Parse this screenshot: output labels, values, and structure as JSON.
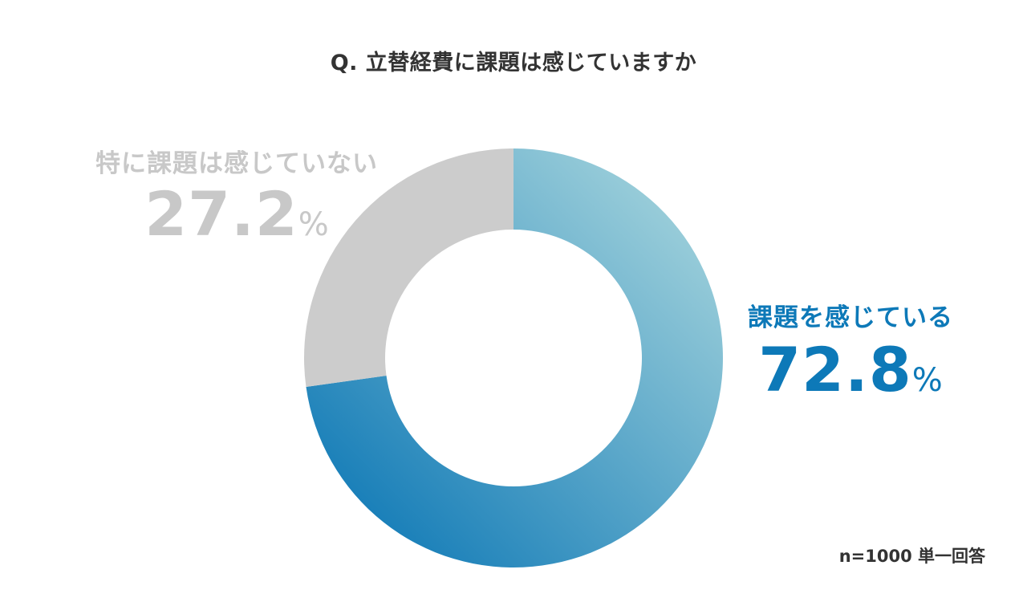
{
  "chart_data": {
    "type": "pie",
    "title": "Q. 立替経費に課題は感じていますか",
    "donut": true,
    "categories": [
      "課題を感じている",
      "特に課題は感じていない"
    ],
    "values": [
      72.8,
      27.2
    ],
    "value_labels": [
      "72.8",
      "27.2"
    ],
    "unit": "%",
    "colors": {
      "課題を感じている": [
        "#0a76b5",
        "#a8d6dd"
      ],
      "特に課題は感じていない": "#cccccc"
    },
    "label_colors": [
      "#0d79b8",
      "#c8c8c8"
    ],
    "start_angle_deg": 0,
    "direction": "clockwise",
    "note": "n=1000 単一回答"
  }
}
